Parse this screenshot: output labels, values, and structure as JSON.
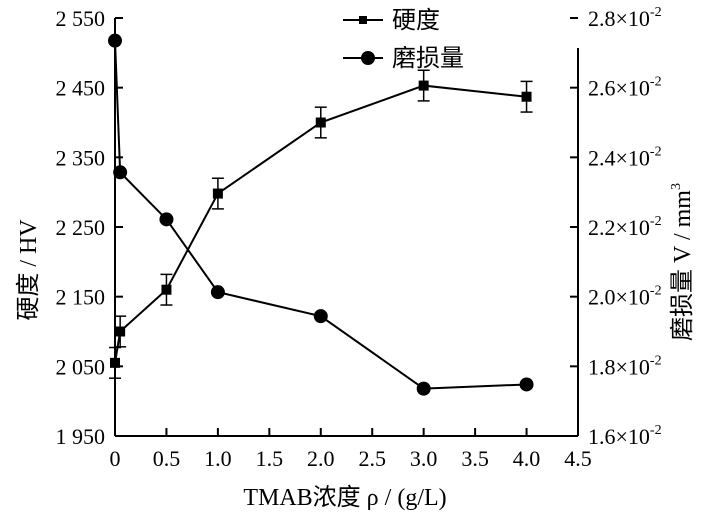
{
  "chart_data": {
    "type": "line",
    "xlabel": "TMAB浓度 ρ / (g/L)",
    "ylabel_left": "硬度 / HV",
    "ylabel_right": "磨损量 V / mm",
    "ylabel_right_sup": "3",
    "xlim": [
      0,
      4.5
    ],
    "x_ticks": [
      0,
      0.5,
      1.0,
      1.5,
      2.0,
      2.5,
      3.0,
      3.5,
      4.0,
      4.5
    ],
    "x_tick_labels": [
      "0",
      "0.5",
      "1.0",
      "1.5",
      "2.0",
      "2.5",
      "3.0",
      "3.5",
      "4.0",
      "4.5"
    ],
    "ylim_left": [
      1950,
      2550
    ],
    "y_ticks_left": [
      1950,
      2050,
      2150,
      2250,
      2350,
      2450,
      2550
    ],
    "y_tick_labels_left": [
      "1 950",
      "2 050",
      "2 150",
      "2 250",
      "2 350",
      "2 450",
      "2 550"
    ],
    "ylim_right": [
      1.6,
      2.8
    ],
    "y_ticks_right": [
      1.6,
      1.8,
      2.0,
      2.2,
      2.4,
      2.6,
      2.8
    ],
    "y_tick_labels_right": [
      "1.6×10",
      "1.8×10",
      "2.0×10",
      "2.2×10",
      "2.4×10",
      "2.6×10",
      "2.8×10"
    ],
    "y_tick_sup_right": "-2",
    "legend_position": "top-center",
    "series": [
      {
        "name": "硬度",
        "axis": "left",
        "marker": "square",
        "x": [
          0,
          0.05,
          0.5,
          1.0,
          2.0,
          3.0,
          4.0
        ],
        "values": [
          2055,
          2100,
          2160,
          2298,
          2400,
          2453,
          2437
        ],
        "errors": [
          22,
          22,
          22,
          22,
          22,
          22,
          22
        ]
      },
      {
        "name": "磨损量",
        "axis": "right",
        "marker": "circle",
        "x": [
          0,
          0.05,
          0.5,
          1.0,
          2.0,
          3.0,
          4.0
        ],
        "values": [
          2.735,
          2.357,
          2.222,
          2.013,
          1.944,
          1.736,
          1.748
        ],
        "value_scale_sup": "-2"
      }
    ]
  }
}
